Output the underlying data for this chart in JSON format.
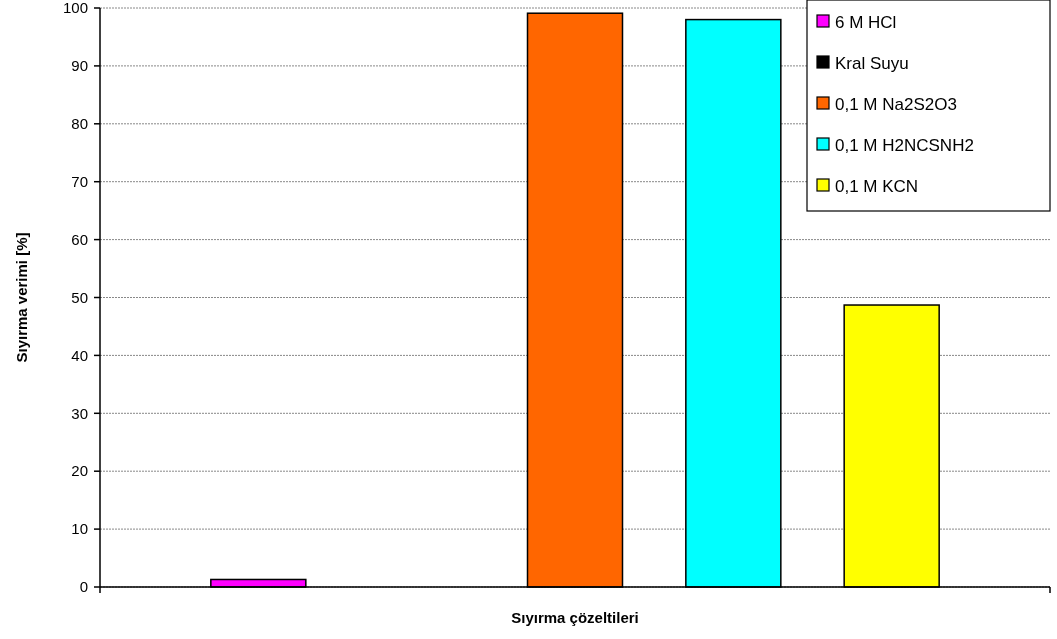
{
  "chart_data": {
    "type": "bar",
    "xlabel": "Sıyırma çözeltileri",
    "ylabel": "Sıyırma verimi [%]",
    "categories": [
      null
    ],
    "series": [
      {
        "name": "6 M HCl",
        "color": "#ff00ff",
        "values": [
          1.3
        ]
      },
      {
        "name": "Kral Suyu",
        "color": "#000000",
        "values": [
          0
        ]
      },
      {
        "name": "0,1 M Na2S2O3",
        "color": "#ff6600",
        "values": [
          99.1
        ]
      },
      {
        "name": "0,1 M H2NCSNH2",
        "color": "#00ffff",
        "values": [
          98.0
        ]
      },
      {
        "name": "0,1 M KCN",
        "color": "#ffff00",
        "values": [
          48.7
        ]
      }
    ],
    "ylim": [
      0,
      100
    ],
    "yticks": [
      0,
      10,
      20,
      30,
      40,
      50,
      60,
      70,
      80,
      90,
      100
    ],
    "grid": "y",
    "legend": "top right"
  }
}
